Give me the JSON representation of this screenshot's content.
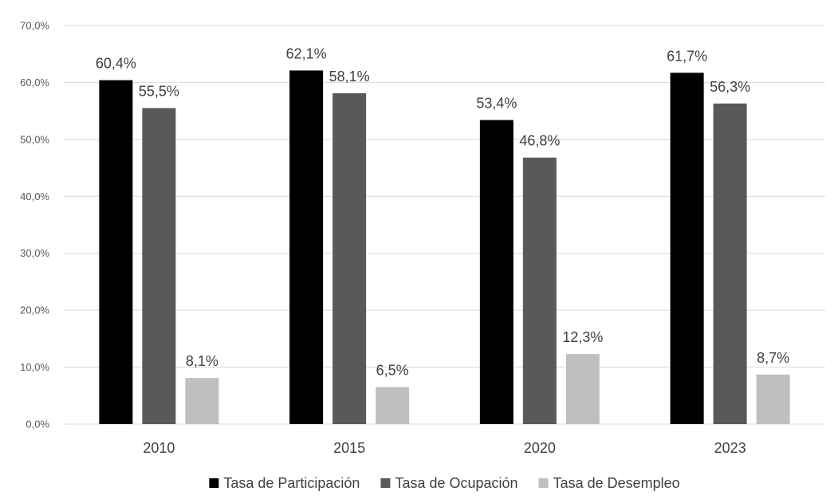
{
  "chart_data": {
    "type": "bar",
    "title": "",
    "xlabel": "",
    "ylabel": "",
    "categories": [
      "2010",
      "2015",
      "2020",
      "2023"
    ],
    "series": [
      {
        "name": "Tasa de Participación",
        "values": [
          60.4,
          62.1,
          53.4,
          61.7
        ],
        "labels": [
          "60,4%",
          "62,1%",
          "53,4%",
          "61,7%"
        ],
        "color": "#000000"
      },
      {
        "name": "Tasa de Ocupación",
        "values": [
          55.5,
          58.1,
          46.8,
          56.3
        ],
        "labels": [
          "55,5%",
          "58,1%",
          "46,8%",
          "56,3%"
        ],
        "color": "#595959"
      },
      {
        "name": "Tasa de Desempleo",
        "values": [
          8.1,
          6.5,
          12.3,
          8.7
        ],
        "labels": [
          "8,1%",
          "6,5%",
          "12,3%",
          "8,7%"
        ],
        "color": "#bfbfbf"
      }
    ],
    "ylim": [
      0,
      70
    ],
    "y_ticks": [
      0,
      10,
      20,
      30,
      40,
      50,
      60,
      70
    ],
    "y_tick_labels": [
      "0,0%",
      "10,0%",
      "20,0%",
      "30,0%",
      "40,0%",
      "50,0%",
      "60,0%",
      "70,0%"
    ],
    "grid": true,
    "gridline_color": "#d9d9d9",
    "legend_position": "bottom"
  }
}
